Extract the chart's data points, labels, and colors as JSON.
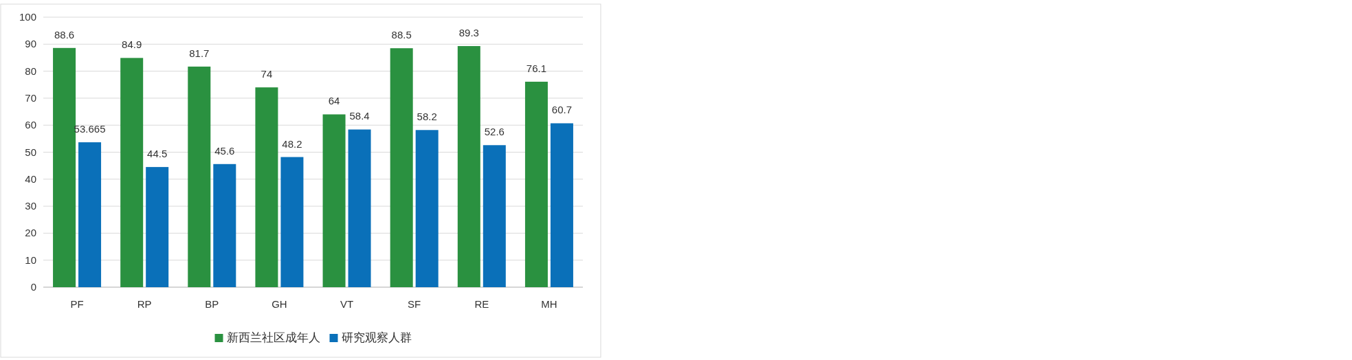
{
  "chart_data": {
    "type": "bar",
    "categories": [
      "PF",
      "RP",
      "BP",
      "GH",
      "VT",
      "SF",
      "RE",
      "MH"
    ],
    "series": [
      {
        "name": "新西兰社区成年人",
        "color": "#2a9140",
        "values": [
          88.6,
          84.9,
          81.7,
          74,
          64,
          88.5,
          89.3,
          76.1
        ]
      },
      {
        "name": "研究观察人群",
        "color": "#0a70b9",
        "values": [
          53.665,
          44.5,
          45.6,
          48.2,
          58.4,
          58.2,
          52.6,
          60.7
        ]
      }
    ],
    "ylim": [
      0,
      100
    ],
    "yticks": [
      0,
      10,
      20,
      30,
      40,
      50,
      60,
      70,
      80,
      90,
      100
    ],
    "grid": "y",
    "legend": "bottom",
    "data_labels": true
  }
}
